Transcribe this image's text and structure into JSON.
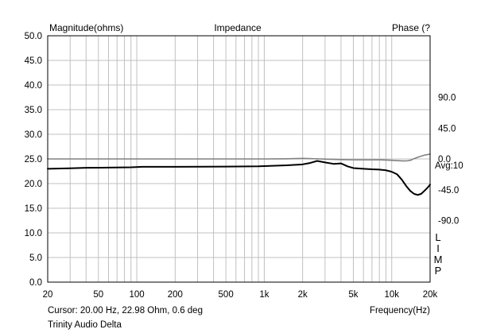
{
  "chart_data": {
    "type": "line",
    "title": "Impedance",
    "left_axis_title": "Magnitude(ohms)",
    "right_axis_title": "Phase (?",
    "xlabel": "Frequency(Hz)",
    "x_scale": "log",
    "xlim": [
      20,
      20000
    ],
    "x_ticks": [
      {
        "value": 20,
        "label": "20"
      },
      {
        "value": 50,
        "label": "50"
      },
      {
        "value": 100,
        "label": "100"
      },
      {
        "value": 200,
        "label": "200"
      },
      {
        "value": 500,
        "label": "500"
      },
      {
        "value": 1000,
        "label": "1k"
      },
      {
        "value": 2000,
        "label": "2k"
      },
      {
        "value": 5000,
        "label": "5k"
      },
      {
        "value": 10000,
        "label": "10k"
      },
      {
        "value": 20000,
        "label": "20k"
      }
    ],
    "ylim": [
      0,
      50
    ],
    "y_ticks": [
      "0.0",
      "5.0",
      "10.0",
      "15.0",
      "20.0",
      "25.0",
      "30.0",
      "35.0",
      "40.0",
      "45.0",
      "50.0"
    ],
    "phase_lim": [
      -180,
      180
    ],
    "phase_ticks": [
      {
        "value": 90,
        "label": "90.0"
      },
      {
        "value": 45,
        "label": "45.0"
      },
      {
        "value": 0,
        "label": "0.0"
      },
      {
        "value": -45,
        "label": "-45.0"
      },
      {
        "value": -90,
        "label": "-90.0"
      }
    ],
    "avg_label": "Avg:10",
    "side_label": "LIMP",
    "grid": true,
    "series": [
      {
        "axis": "magnitude",
        "color": "#000000",
        "points": [
          [
            20,
            23.0
          ],
          [
            30,
            23.1
          ],
          [
            40,
            23.2
          ],
          [
            60,
            23.25
          ],
          [
            90,
            23.3
          ],
          [
            110,
            23.4
          ],
          [
            200,
            23.4
          ],
          [
            500,
            23.45
          ],
          [
            900,
            23.5
          ],
          [
            1000,
            23.55
          ],
          [
            1500,
            23.7
          ],
          [
            2000,
            23.9
          ],
          [
            2300,
            24.2
          ],
          [
            2600,
            24.6
          ],
          [
            3000,
            24.3
          ],
          [
            3500,
            24.0
          ],
          [
            4000,
            24.1
          ],
          [
            4500,
            23.5
          ],
          [
            5000,
            23.15
          ],
          [
            6000,
            23.0
          ],
          [
            7000,
            22.9
          ],
          [
            8000,
            22.85
          ],
          [
            9000,
            22.7
          ],
          [
            10000,
            22.4
          ],
          [
            11000,
            21.9
          ],
          [
            12000,
            20.8
          ],
          [
            13000,
            19.5
          ],
          [
            14000,
            18.5
          ],
          [
            15000,
            17.9
          ],
          [
            16000,
            17.7
          ],
          [
            17000,
            17.9
          ],
          [
            18000,
            18.5
          ],
          [
            19000,
            19.1
          ],
          [
            20000,
            19.8
          ]
        ]
      },
      {
        "axis": "phase",
        "color": "#808080",
        "points": [
          [
            20,
            0
          ],
          [
            500,
            0
          ],
          [
            1000,
            0
          ],
          [
            1500,
            0.2
          ],
          [
            2000,
            0.8
          ],
          [
            2500,
            0.3
          ],
          [
            3000,
            -0.2
          ],
          [
            4000,
            -1.0
          ],
          [
            5000,
            -1.3
          ],
          [
            7000,
            -1.3
          ],
          [
            8000,
            -1.2
          ],
          [
            10000,
            -2.0
          ],
          [
            12000,
            -2.8
          ],
          [
            13000,
            -2.9
          ],
          [
            14000,
            -2.0
          ],
          [
            15000,
            0.5
          ],
          [
            16000,
            2.5
          ],
          [
            18000,
            5.5
          ],
          [
            20000,
            7.0
          ]
        ]
      }
    ]
  },
  "footer": {
    "cursor": "Cursor: 20.00 Hz, 22.98 Ohm, 0.6 deg",
    "name": "Trinity Audio Delta"
  },
  "colors": {
    "grid": "#c0c0c0",
    "frame": "#000000",
    "magnitude": "#000000",
    "phase": "#808080"
  }
}
